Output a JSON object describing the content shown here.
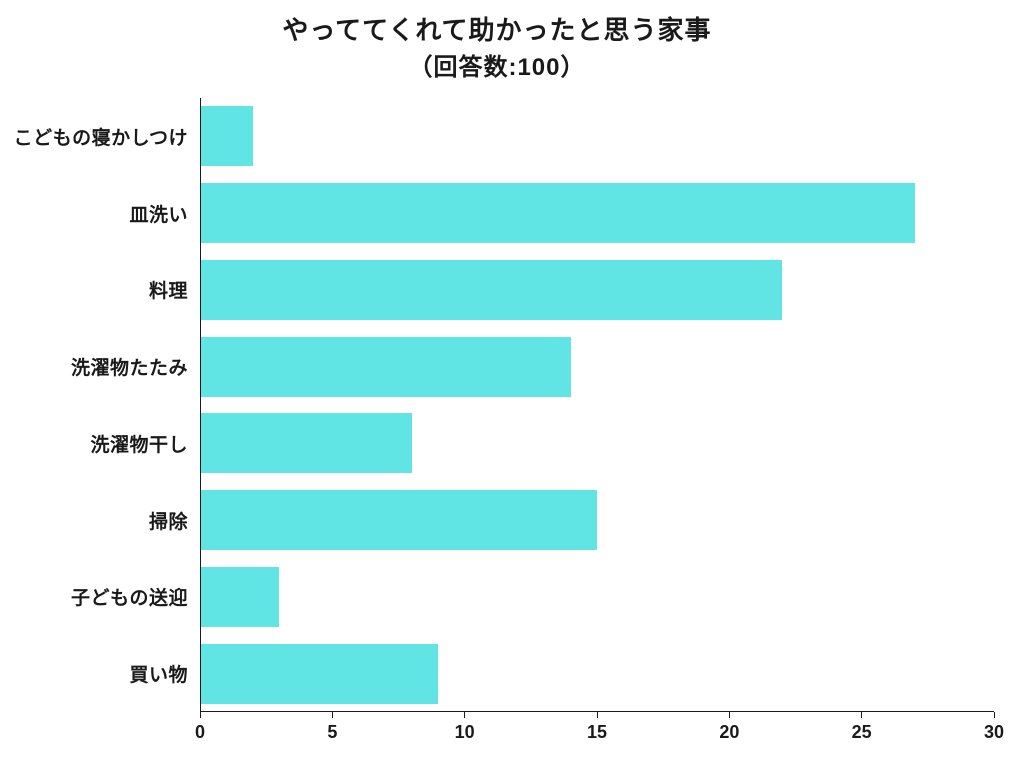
{
  "chart": {
    "type": "bar-horizontal",
    "title": "やっててくれて助かったと思う家事",
    "subtitle": "（回答数:100）",
    "title_fontsize": 26,
    "subtitle_fontsize": 24,
    "label_fontsize": 19,
    "tick_fontsize": 18,
    "background_color": "#ffffff",
    "bar_color": "#61e4e4",
    "axis_color": "#1a1a1a",
    "text_color": "#1a1a1a",
    "xlim": [
      0,
      30
    ],
    "xtick_step": 5,
    "xticks": [
      0,
      5,
      10,
      15,
      20,
      25,
      30
    ],
    "categories": [
      "こどもの寝かしつけ",
      "皿洗い",
      "料理",
      "洗濯物たたみ",
      "洗濯物干し",
      "掃除",
      "子どもの送迎",
      "買い物"
    ],
    "values": [
      2,
      27,
      22,
      14,
      8,
      15,
      3,
      9
    ],
    "bar_fill_opacity": 1.0,
    "bar_height_ratio": 0.78
  }
}
